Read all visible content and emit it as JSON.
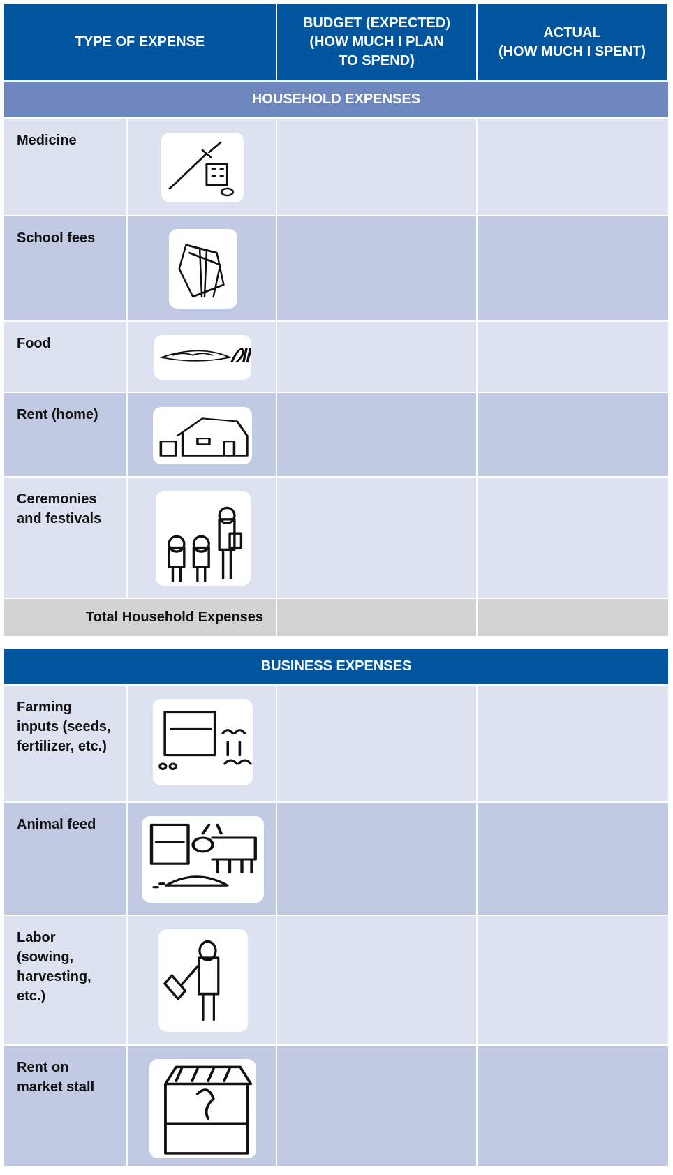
{
  "header": {
    "columns": [
      {
        "lines": [
          "TYPE OF EXPENSE"
        ]
      },
      {
        "lines": [
          "BUDGET (EXPECTED)",
          "(HOW MUCH I PLAN",
          "TO SPEND)"
        ]
      },
      {
        "lines": [
          "ACTUAL",
          "(HOW MUCH I SPENT)"
        ]
      }
    ]
  },
  "sections": [
    {
      "title": "HOUSEHOLD EXPENSES",
      "rows": [
        "Medicine",
        "School fees",
        "Food",
        "Rent (home)",
        "Ceremonies and festivals"
      ],
      "total": "Total Household Expenses"
    },
    {
      "title": "BUSINESS EXPENSES",
      "rows": [
        "Farming inputs (seeds, fertilizer, etc.)",
        "Animal feed",
        "Labor (sowing, harvesting, etc.)",
        "Rent on market stall"
      ]
    }
  ]
}
